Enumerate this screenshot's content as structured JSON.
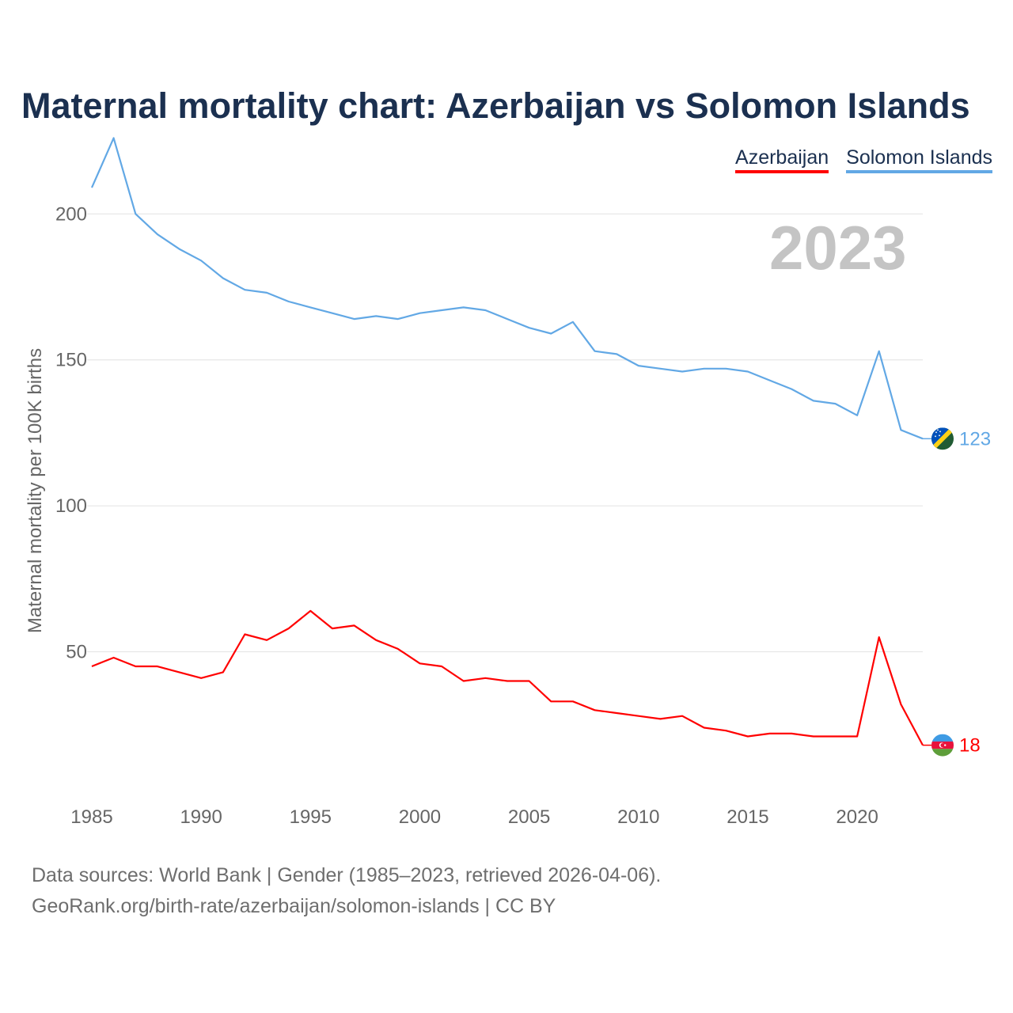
{
  "title": "Maternal mortality chart: Azerbaijan vs Solomon Islands",
  "legend": [
    {
      "name": "Azerbaijan",
      "color": "#ff0000"
    },
    {
      "name": "Solomon Islands",
      "color": "#62a8e5"
    }
  ],
  "current_year": "2023",
  "footer": {
    "line1": "Data sources: World Bank | Gender (1985–2023, retrieved 2026-04-06).",
    "line2": "GeoRank.org/birth-rate/azerbaijan/solomon-islands | CC BY"
  },
  "chart_data": {
    "type": "line",
    "title": "Maternal mortality chart: Azerbaijan vs Solomon Islands",
    "xlabel": "",
    "ylabel": "Maternal mortality per 100K births",
    "xlim": [
      1985,
      2023
    ],
    "ylim": [
      0,
      215
    ],
    "yticks": [
      50,
      100,
      150,
      200
    ],
    "xticks": [
      1985,
      1990,
      1995,
      2000,
      2005,
      2010,
      2015,
      2020
    ],
    "grid": true,
    "legend_position": "top-right",
    "x": [
      1985,
      1986,
      1987,
      1988,
      1989,
      1990,
      1991,
      1992,
      1993,
      1994,
      1995,
      1996,
      1997,
      1998,
      1999,
      2000,
      2001,
      2002,
      2003,
      2004,
      2005,
      2006,
      2007,
      2008,
      2009,
      2010,
      2011,
      2012,
      2013,
      2014,
      2015,
      2016,
      2017,
      2018,
      2019,
      2020,
      2021,
      2022,
      2023
    ],
    "series": [
      {
        "name": "Solomon Islands",
        "color": "#62a8e5",
        "end_label": "123",
        "flag": "solomon-islands-flag-icon",
        "values": [
          209,
          226,
          200,
          193,
          188,
          184,
          178,
          174,
          173,
          170,
          168,
          166,
          164,
          165,
          164,
          166,
          167,
          168,
          167,
          164,
          161,
          159,
          163,
          153,
          152,
          148,
          147,
          146,
          147,
          147,
          146,
          143,
          140,
          136,
          135,
          131,
          153,
          126,
          123
        ]
      },
      {
        "name": "Azerbaijan",
        "color": "#ff0000",
        "end_label": "18",
        "flag": "azerbaijan-flag-icon",
        "values": [
          45,
          48,
          45,
          45,
          43,
          41,
          43,
          56,
          54,
          58,
          64,
          58,
          59,
          54,
          51,
          46,
          45,
          40,
          41,
          40,
          40,
          33,
          33,
          30,
          29,
          28,
          27,
          28,
          24,
          23,
          21,
          22,
          22,
          21,
          21,
          21,
          55,
          32,
          18
        ]
      }
    ]
  }
}
